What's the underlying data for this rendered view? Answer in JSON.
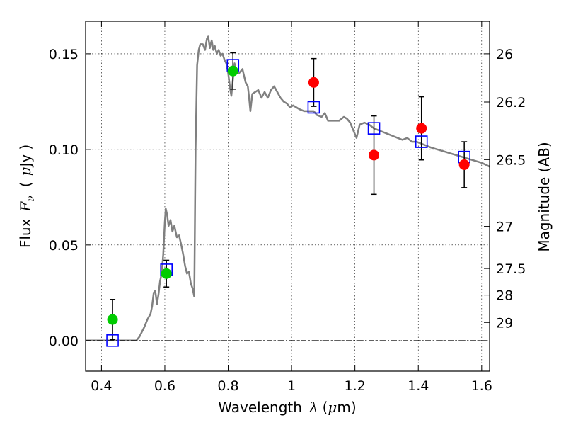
{
  "chart_data": {
    "type": "scatter",
    "xlabel_parts": [
      "Wavelength",
      "λ",
      "(",
      "μ",
      "m)"
    ],
    "ylabel_parts": [
      "Flux",
      "F",
      "ν",
      "(",
      "μ",
      "Jy",
      ")"
    ],
    "ylabel_right": "Magnitude (AB)",
    "xlim": [
      0.35,
      1.625
    ],
    "ylim": [
      -0.016,
      0.167
    ],
    "grid": true,
    "x_ticks": [
      {
        "v": 0.4,
        "label": "0.4"
      },
      {
        "v": 0.6,
        "label": "0.6"
      },
      {
        "v": 0.8,
        "label": "0.8"
      },
      {
        "v": 1.0,
        "label": "1"
      },
      {
        "v": 1.2,
        "label": "1.2"
      },
      {
        "v": 1.4,
        "label": "1.4"
      },
      {
        "v": 1.6,
        "label": "1.6"
      }
    ],
    "y_ticks": [
      {
        "v": 0.0,
        "label": "0.00"
      },
      {
        "v": 0.05,
        "label": "0.05"
      },
      {
        "v": 0.1,
        "label": "0.10"
      },
      {
        "v": 0.15,
        "label": "0.15"
      }
    ],
    "right_ticks": [
      {
        "mag": 26,
        "label": "26"
      },
      {
        "mag": 26.2,
        "label": "26.2"
      },
      {
        "mag": 26.5,
        "label": "26.5"
      },
      {
        "mag": 27,
        "label": "27"
      },
      {
        "mag": 27.5,
        "label": "27.5"
      },
      {
        "mag": 28,
        "label": "28"
      },
      {
        "mag": 29,
        "label": "29"
      }
    ],
    "colors": {
      "model": "#808080",
      "green": "#00cc00",
      "red": "#ff0000",
      "square": "#0000ff",
      "errorbar": "#000000"
    },
    "series": [
      {
        "marker": "line",
        "points": [
          [
            0.35,
            0.0
          ],
          [
            0.51,
            0.0
          ],
          [
            0.52,
            0.002
          ],
          [
            0.535,
            0.007
          ],
          [
            0.545,
            0.011
          ],
          [
            0.555,
            0.014
          ],
          [
            0.56,
            0.018
          ],
          [
            0.565,
            0.025
          ],
          [
            0.57,
            0.026
          ],
          [
            0.575,
            0.019
          ],
          [
            0.58,
            0.024
          ],
          [
            0.585,
            0.031
          ],
          [
            0.59,
            0.035
          ],
          [
            0.595,
            0.045
          ],
          [
            0.6,
            0.062
          ],
          [
            0.603,
            0.069
          ],
          [
            0.607,
            0.066
          ],
          [
            0.612,
            0.06
          ],
          [
            0.618,
            0.063
          ],
          [
            0.624,
            0.057
          ],
          [
            0.63,
            0.06
          ],
          [
            0.638,
            0.054
          ],
          [
            0.645,
            0.055
          ],
          [
            0.652,
            0.05
          ],
          [
            0.658,
            0.045
          ],
          [
            0.664,
            0.039
          ],
          [
            0.67,
            0.035
          ],
          [
            0.676,
            0.036
          ],
          [
            0.682,
            0.03
          ],
          [
            0.688,
            0.027
          ],
          [
            0.693,
            0.023
          ],
          [
            0.697,
            0.1
          ],
          [
            0.702,
            0.144
          ],
          [
            0.707,
            0.152
          ],
          [
            0.712,
            0.155
          ],
          [
            0.72,
            0.155
          ],
          [
            0.727,
            0.152
          ],
          [
            0.733,
            0.158
          ],
          [
            0.737,
            0.159
          ],
          [
            0.742,
            0.153
          ],
          [
            0.748,
            0.157
          ],
          [
            0.753,
            0.152
          ],
          [
            0.758,
            0.154
          ],
          [
            0.764,
            0.15
          ],
          [
            0.77,
            0.152
          ],
          [
            0.776,
            0.149
          ],
          [
            0.782,
            0.15
          ],
          [
            0.788,
            0.147
          ],
          [
            0.794,
            0.145
          ],
          [
            0.8,
            0.14
          ],
          [
            0.806,
            0.132
          ],
          [
            0.81,
            0.128
          ],
          [
            0.814,
            0.135
          ],
          [
            0.82,
            0.145
          ],
          [
            0.828,
            0.14
          ],
          [
            0.835,
            0.14
          ],
          [
            0.845,
            0.142
          ],
          [
            0.855,
            0.135
          ],
          [
            0.862,
            0.133
          ],
          [
            0.866,
            0.127
          ],
          [
            0.87,
            0.12
          ],
          [
            0.876,
            0.129
          ],
          [
            0.885,
            0.13
          ],
          [
            0.895,
            0.131
          ],
          [
            0.905,
            0.127
          ],
          [
            0.915,
            0.13
          ],
          [
            0.925,
            0.127
          ],
          [
            0.935,
            0.131
          ],
          [
            0.945,
            0.133
          ],
          [
            0.955,
            0.13
          ],
          [
            0.965,
            0.127
          ],
          [
            0.975,
            0.125
          ],
          [
            0.985,
            0.124
          ],
          [
            0.995,
            0.122
          ],
          [
            1.005,
            0.123
          ],
          [
            1.015,
            0.122
          ],
          [
            1.025,
            0.121
          ],
          [
            1.04,
            0.12
          ],
          [
            1.055,
            0.12
          ],
          [
            1.07,
            0.12
          ],
          [
            1.08,
            0.118
          ],
          [
            1.095,
            0.117
          ],
          [
            1.105,
            0.119
          ],
          [
            1.115,
            0.115
          ],
          [
            1.13,
            0.115
          ],
          [
            1.15,
            0.115
          ],
          [
            1.165,
            0.117
          ],
          [
            1.175,
            0.116
          ],
          [
            1.185,
            0.114
          ],
          [
            1.195,
            0.11
          ],
          [
            1.205,
            0.106
          ],
          [
            1.215,
            0.113
          ],
          [
            1.23,
            0.114
          ],
          [
            1.245,
            0.113
          ],
          [
            1.26,
            0.111
          ],
          [
            1.275,
            0.11
          ],
          [
            1.29,
            0.109
          ],
          [
            1.305,
            0.108
          ],
          [
            1.32,
            0.107
          ],
          [
            1.335,
            0.106
          ],
          [
            1.35,
            0.105
          ],
          [
            1.365,
            0.106
          ],
          [
            1.38,
            0.104
          ],
          [
            1.395,
            0.104
          ],
          [
            1.41,
            0.103
          ],
          [
            1.425,
            0.102
          ],
          [
            1.44,
            0.101
          ],
          [
            1.46,
            0.1
          ],
          [
            1.48,
            0.099
          ],
          [
            1.5,
            0.098
          ],
          [
            1.52,
            0.097
          ],
          [
            1.54,
            0.096
          ],
          [
            1.56,
            0.095
          ],
          [
            1.58,
            0.094
          ],
          [
            1.6,
            0.093
          ],
          [
            1.625,
            0.091
          ]
        ]
      },
      {
        "marker": "square",
        "points": [
          [
            0.435,
            0.0
          ],
          [
            0.605,
            0.037
          ],
          [
            0.815,
            0.144
          ],
          [
            1.07,
            0.122
          ],
          [
            1.26,
            0.111
          ],
          [
            1.41,
            0.104
          ],
          [
            1.545,
            0.096
          ]
        ]
      },
      {
        "marker": "circle-green",
        "points": [
          [
            0.435,
            0.011,
            0.0105
          ],
          [
            0.605,
            0.035,
            0.007
          ],
          [
            0.815,
            0.141,
            0.0095
          ]
        ]
      },
      {
        "marker": "circle-red",
        "points": [
          [
            1.07,
            0.135,
            0.0125
          ],
          [
            1.26,
            0.097,
            0.0205
          ],
          [
            1.41,
            0.111,
            0.0165
          ],
          [
            1.545,
            0.092,
            0.012
          ]
        ]
      }
    ]
  }
}
